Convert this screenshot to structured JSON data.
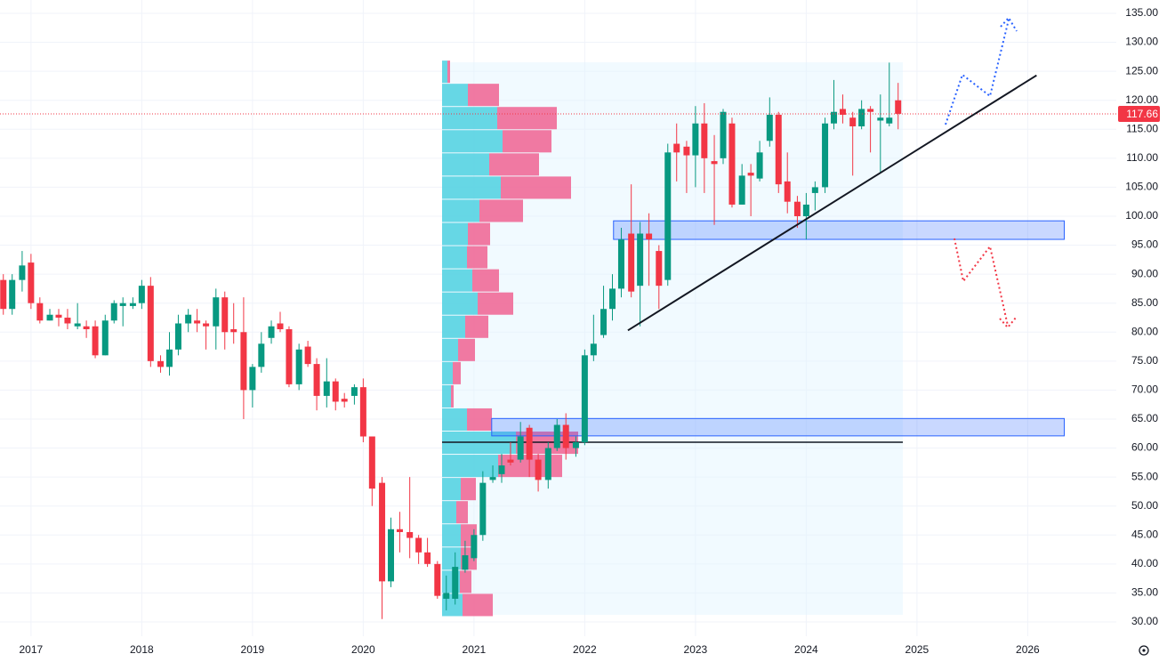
{
  "chart_data": {
    "type": "candlestick",
    "up_color": "#089981",
    "down_color": "#f23645",
    "grid": true,
    "xlim": [
      2016.72,
      2026.8
    ],
    "xticks": [
      2017,
      2018,
      2019,
      2020,
      2021,
      2022,
      2023,
      2024,
      2025,
      2026
    ],
    "ylim": [
      27.54,
      137.3
    ],
    "yticks": [
      {
        "value": 30,
        "label": "30.00"
      },
      {
        "value": 35,
        "label": "35.00"
      },
      {
        "value": 40,
        "label": "40.00"
      },
      {
        "value": 45,
        "label": "45.00"
      },
      {
        "value": 50,
        "label": "50.00"
      },
      {
        "value": 55,
        "label": "55.00"
      },
      {
        "value": 60,
        "label": "60.00"
      },
      {
        "value": 65,
        "label": "65.00"
      },
      {
        "value": 70,
        "label": "70.00"
      },
      {
        "value": 75,
        "label": "75.00"
      },
      {
        "value": 80,
        "label": "80.00"
      },
      {
        "value": 85,
        "label": "85.00"
      },
      {
        "value": 90,
        "label": "90.00"
      },
      {
        "value": 95,
        "label": "95.00"
      },
      {
        "value": 100,
        "label": "100.00"
      },
      {
        "value": 105,
        "label": "105.00"
      },
      {
        "value": 110,
        "label": "110.00"
      },
      {
        "value": 115,
        "label": "115.00"
      },
      {
        "value": 120,
        "label": "120.00"
      },
      {
        "value": 125,
        "label": "125.00"
      },
      {
        "value": 130,
        "label": "130.00"
      },
      {
        "value": 135,
        "label": "135.00"
      }
    ],
    "x": [
      2016.75,
      2016.83,
      2016.92,
      2017.0,
      2017.08,
      2017.17,
      2017.25,
      2017.33,
      2017.42,
      2017.5,
      2017.58,
      2017.67,
      2017.75,
      2017.83,
      2017.92,
      2018.0,
      2018.08,
      2018.17,
      2018.25,
      2018.33,
      2018.42,
      2018.5,
      2018.58,
      2018.67,
      2018.75,
      2018.83,
      2018.92,
      2019.0,
      2019.08,
      2019.17,
      2019.25,
      2019.33,
      2019.42,
      2019.5,
      2019.58,
      2019.67,
      2019.75,
      2019.83,
      2019.92,
      2020.0,
      2020.08,
      2020.17,
      2020.25,
      2020.33,
      2020.42,
      2020.5,
      2020.58,
      2020.67,
      2020.75,
      2020.83,
      2020.92,
      2021.0,
      2021.08,
      2021.17,
      2021.25,
      2021.33,
      2021.42,
      2021.5,
      2021.58,
      2021.67,
      2021.75,
      2021.83,
      2021.92,
      2022.0,
      2022.08,
      2022.17,
      2022.25,
      2022.33,
      2022.42,
      2022.5,
      2022.58,
      2022.67,
      2022.75,
      2022.83,
      2022.92,
      2023.0,
      2023.08,
      2023.17,
      2023.25,
      2023.33,
      2023.42,
      2023.5,
      2023.58,
      2023.67,
      2023.75,
      2023.83,
      2023.92,
      2024.0,
      2024.08,
      2024.17,
      2024.25,
      2024.33,
      2024.42,
      2024.5,
      2024.58,
      2024.67,
      2024.75,
      2024.83
    ],
    "candles": [
      [
        89,
        90,
        83,
        84
      ],
      [
        84,
        90,
        83,
        89
      ],
      [
        89,
        94,
        87,
        91.5
      ],
      [
        92,
        93.5,
        84,
        85
      ],
      [
        85,
        86,
        81.5,
        82
      ],
      [
        82,
        84,
        82,
        83
      ],
      [
        83,
        84,
        81,
        82.5
      ],
      [
        82.5,
        84,
        80.5,
        81.5
      ],
      [
        81,
        85,
        80.5,
        81.5
      ],
      [
        81,
        82,
        79,
        80.5
      ],
      [
        81,
        82,
        75.5,
        76
      ],
      [
        76,
        83,
        76,
        82
      ],
      [
        82,
        85.5,
        81.5,
        85
      ],
      [
        84.5,
        86,
        81,
        85
      ],
      [
        84.5,
        86,
        84,
        85
      ],
      [
        85,
        89,
        84,
        88
      ],
      [
        88,
        89.5,
        74,
        75
      ],
      [
        75,
        76,
        73,
        74
      ],
      [
        74,
        80,
        72.5,
        77
      ],
      [
        77,
        83,
        76,
        81.5
      ],
      [
        81.5,
        84,
        80,
        83
      ],
      [
        82,
        84,
        80,
        81.5
      ],
      [
        81.5,
        82,
        77,
        81
      ],
      [
        81,
        87.5,
        77,
        86
      ],
      [
        86,
        87,
        77,
        80
      ],
      [
        80.5,
        85,
        78,
        80
      ],
      [
        80,
        86,
        65,
        70
      ],
      [
        70,
        74.5,
        67,
        74
      ],
      [
        74,
        80,
        73,
        78
      ],
      [
        79,
        82,
        78,
        81
      ],
      [
        81.5,
        83.5,
        80,
        80.5
      ],
      [
        80.5,
        81,
        70.5,
        71
      ],
      [
        71,
        78,
        70,
        77
      ],
      [
        77.5,
        78.5,
        74,
        74.5
      ],
      [
        74.5,
        75.5,
        66.5,
        69
      ],
      [
        69,
        75.5,
        67,
        71.5
      ],
      [
        71.5,
        72,
        66.5,
        68
      ],
      [
        68.5,
        69.5,
        67,
        68
      ],
      [
        69,
        71,
        67.5,
        70.5
      ],
      [
        70.5,
        72,
        61,
        62
      ],
      [
        62,
        62,
        50,
        53
      ],
      [
        54,
        55,
        30.5,
        37
      ],
      [
        37,
        48,
        36,
        46
      ],
      [
        46,
        49,
        42,
        45.5
      ],
      [
        45.5,
        55,
        41,
        44.5
      ],
      [
        44.5,
        45,
        40,
        42
      ],
      [
        42,
        44.5,
        39.5,
        40
      ],
      [
        40,
        40.5,
        34,
        34.5
      ],
      [
        34,
        38,
        32,
        35
      ],
      [
        34,
        42,
        33,
        39.5
      ],
      [
        39,
        44,
        38.5,
        41.5
      ],
      [
        41,
        46,
        40.5,
        45
      ],
      [
        45,
        56,
        44,
        54
      ],
      [
        54.5,
        57,
        54,
        55
      ],
      [
        55.5,
        59,
        54,
        57
      ],
      [
        58,
        61,
        57,
        57.5
      ],
      [
        58,
        64.5,
        57.5,
        62
      ],
      [
        63.5,
        64,
        55,
        58
      ],
      [
        58,
        59,
        52.5,
        54.5
      ],
      [
        54.5,
        61,
        53,
        60
      ],
      [
        60,
        65,
        59.5,
        64
      ],
      [
        64,
        66,
        58,
        60
      ],
      [
        60,
        62,
        58.5,
        61
      ],
      [
        61,
        77,
        60.5,
        76
      ],
      [
        76,
        83,
        75,
        78
      ],
      [
        79.5,
        88,
        79,
        84
      ],
      [
        84,
        90,
        82,
        87.5
      ],
      [
        87.5,
        98,
        86,
        96
      ],
      [
        97,
        105.5,
        86,
        87
      ],
      [
        88,
        99,
        81,
        97
      ],
      [
        97,
        100.5,
        88,
        96
      ],
      [
        94,
        95,
        84,
        88
      ],
      [
        89,
        112.5,
        88,
        111
      ],
      [
        112.5,
        116,
        106,
        111
      ],
      [
        112,
        113,
        104,
        110.5
      ],
      [
        110.5,
        119,
        105,
        116
      ],
      [
        116,
        119.5,
        104,
        110
      ],
      [
        109.5,
        114,
        98.5,
        109
      ],
      [
        110,
        118.5,
        109,
        118
      ],
      [
        116,
        117,
        101.5,
        102
      ],
      [
        102,
        109,
        102,
        107
      ],
      [
        107.5,
        109,
        100,
        107
      ],
      [
        106.5,
        113,
        106,
        111
      ],
      [
        113,
        120.5,
        112,
        117.5
      ],
      [
        117.5,
        118,
        104,
        105.5
      ],
      [
        106,
        111,
        100.5,
        102.5
      ],
      [
        102.5,
        103.5,
        98,
        100
      ],
      [
        100,
        104,
        96,
        102
      ],
      [
        104,
        106,
        101,
        105
      ],
      [
        105,
        117,
        104,
        116
      ],
      [
        116,
        123.5,
        115,
        118
      ],
      [
        118.5,
        121,
        116,
        117.5
      ],
      [
        117,
        118,
        107,
        115.5
      ],
      [
        115.5,
        120,
        115,
        118.5
      ],
      [
        118.5,
        119,
        111,
        118
      ],
      [
        116.5,
        121,
        107.5,
        117
      ],
      [
        116,
        126.5,
        115.5,
        117
      ],
      [
        120,
        123,
        115,
        117.66
      ]
    ],
    "volume_profile": {
      "up_color": "#4dd0e1",
      "down_color": "#f06292",
      "bins": [
        31,
        35,
        39,
        43,
        47,
        51,
        55,
        59,
        63,
        67,
        71,
        75,
        79,
        83,
        87,
        91,
        95,
        99,
        103,
        107,
        111,
        115,
        119,
        123,
        127
      ],
      "up": [
        23,
        20,
        21,
        21,
        16,
        21,
        63,
        83,
        28,
        10,
        12,
        18,
        26,
        40,
        34,
        28,
        29,
        42,
        66,
        53,
        68,
        62,
        29,
        6
      ],
      "down": [
        34,
        13,
        18,
        18,
        13,
        17,
        72,
        70,
        28,
        3,
        9,
        19,
        26,
        40,
        30,
        23,
        25,
        49,
        79,
        56,
        55,
        67,
        35,
        3
      ],
      "poc": 61
    },
    "trendline": {
      "x": [
        2022.39,
        2026.08
      ],
      "y": [
        80.3,
        124.3
      ]
    },
    "zones": [
      {
        "x": [
          2022.26,
          2026.33
        ],
        "y": [
          96,
          99.2
        ]
      },
      {
        "x": [
          2021.16,
          2026.33
        ],
        "y": [
          62.1,
          65.1
        ]
      }
    ]
  }
}
